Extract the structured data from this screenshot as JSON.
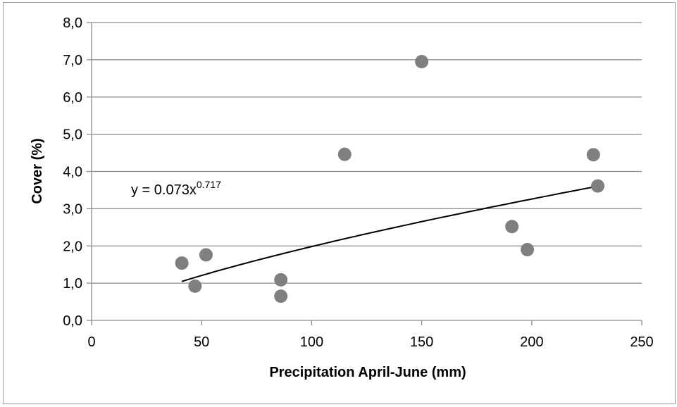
{
  "chart_data": {
    "type": "scatter",
    "xlabel": "Precipitation April-June (mm)",
    "ylabel": "Cover (%)",
    "xlim": [
      0,
      250
    ],
    "ylim": [
      0,
      8
    ],
    "x_ticks": [
      "0",
      "50",
      "100",
      "150",
      "200",
      "250"
    ],
    "y_ticks": [
      "0,0",
      "1,0",
      "2,0",
      "3,0",
      "4,0",
      "5,0",
      "6,0",
      "7,0",
      "8,0"
    ],
    "grid": "horizontal",
    "legend": "none",
    "marker_color": "#7f7f7f",
    "trendline_color": "#000000",
    "points": [
      {
        "x": 41,
        "y": 1.54
      },
      {
        "x": 47,
        "y": 0.92
      },
      {
        "x": 52,
        "y": 1.76
      },
      {
        "x": 86,
        "y": 1.09
      },
      {
        "x": 86,
        "y": 0.65
      },
      {
        "x": 115,
        "y": 4.46
      },
      {
        "x": 150,
        "y": 6.95
      },
      {
        "x": 191,
        "y": 2.52
      },
      {
        "x": 198,
        "y": 1.9
      },
      {
        "x": 228,
        "y": 4.45
      },
      {
        "x": 230,
        "y": 3.61
      }
    ],
    "trendline": {
      "type": "power",
      "a": 0.073,
      "b": 0.717,
      "x_range": [
        41,
        230
      ],
      "label_prefix": "y = 0.073x",
      "label_exponent": "0.717"
    }
  }
}
